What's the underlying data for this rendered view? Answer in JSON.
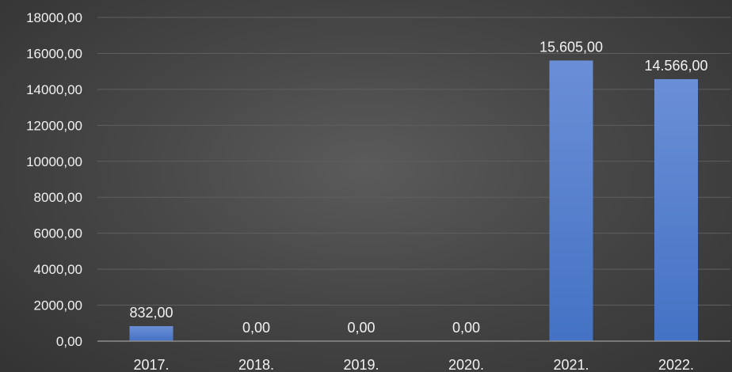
{
  "chart_data": {
    "type": "bar",
    "categories": [
      "2017.",
      "2018.",
      "2019.",
      "2020.",
      "2021.",
      "2022."
    ],
    "series": [
      {
        "values": [
          832,
          0,
          0,
          0,
          15605,
          14566
        ],
        "data_labels": [
          "832,00",
          "0,00",
          "0,00",
          "0,00",
          "15.605,00",
          "14.566,00"
        ]
      }
    ],
    "ylim": [
      0,
      18000
    ],
    "yticks": [
      0,
      2000,
      4000,
      6000,
      8000,
      10000,
      12000,
      14000,
      16000,
      18000
    ],
    "ytick_labels": [
      "0,00",
      "2000,00",
      "4000,00",
      "6000,00",
      "8000,00",
      "10000,00",
      "12000,00",
      "14000,00",
      "16000,00",
      "18000,00"
    ],
    "title": "",
    "xlabel": "",
    "ylabel": "",
    "grid": true,
    "legend": "none",
    "colors": {
      "bar": "#4472c4",
      "bar_light": "#6b8fd6",
      "grid": "#5f5f5f",
      "axis": "#8c8c8c",
      "text": "#f2f2f2"
    }
  }
}
